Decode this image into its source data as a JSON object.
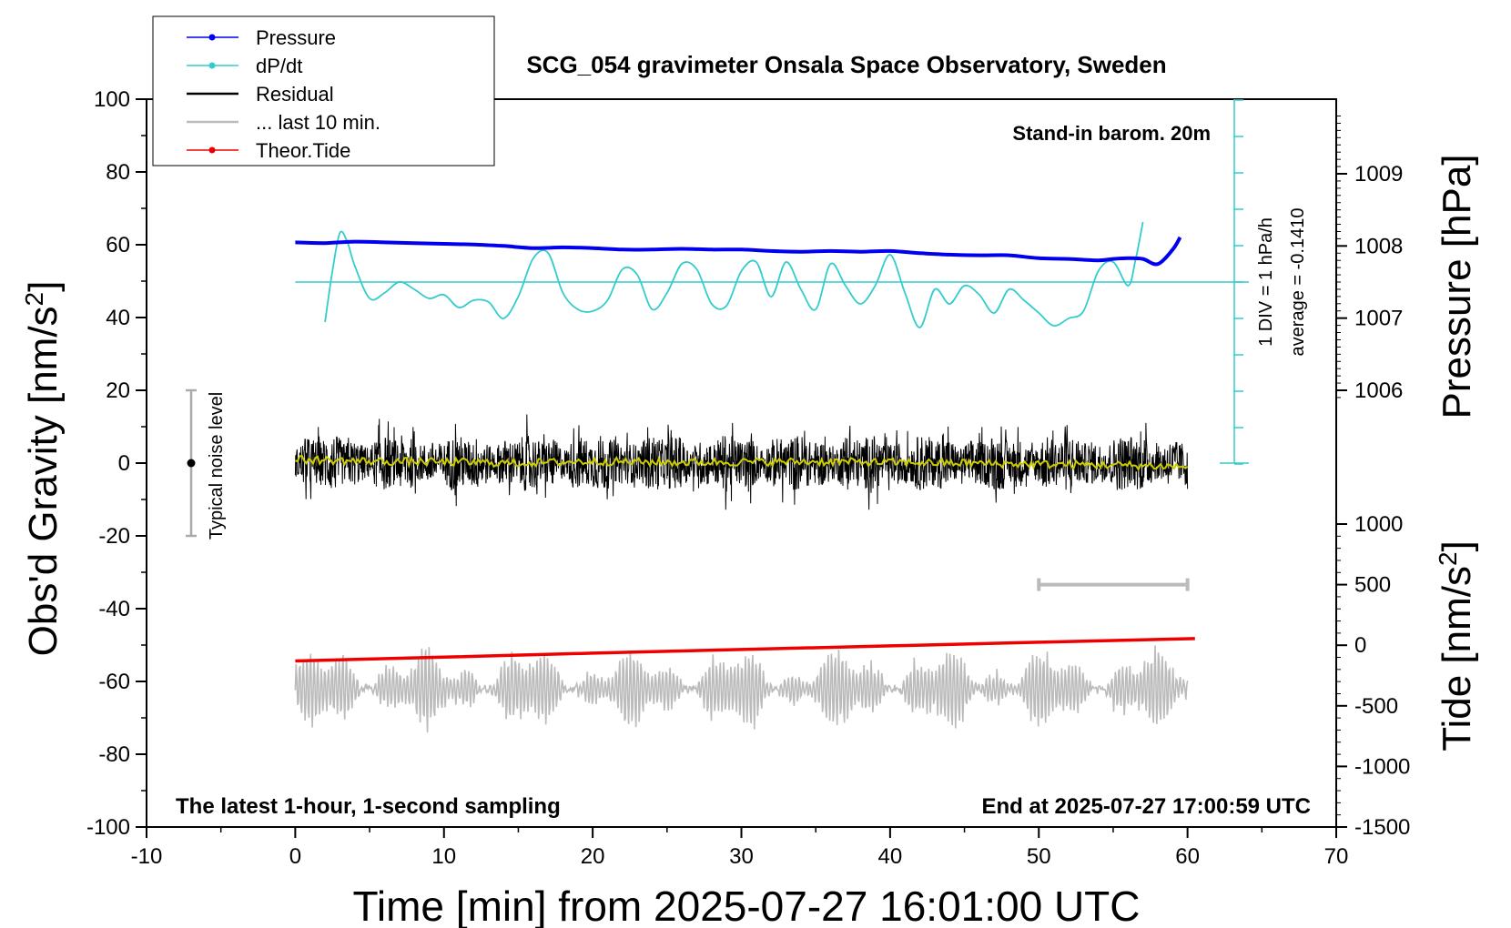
{
  "chart_data": {
    "type": "line",
    "title": "SCG_054 gravimeter Onsala Space Observatory, Sweden",
    "xlabel": "Time [min] from 2025-07-27 16:01:00 UTC",
    "xlim": [
      -10,
      70
    ],
    "xticks": [
      "-10",
      "0",
      "10",
      "20",
      "30",
      "40",
      "50",
      "60",
      "70"
    ],
    "left_axis": {
      "label": "Obs'd Gravity [nm/s",
      "label_sup": "2",
      "label_end": "]",
      "ylim": [
        -100,
        100
      ],
      "ticks": [
        "100",
        "80",
        "60",
        "40",
        "20",
        "0",
        "-20",
        "-40",
        "-60",
        "-80",
        "-100"
      ]
    },
    "right_axis_pressure": {
      "label": "Pressure [hPa]",
      "ticks": [
        "1009",
        "1008",
        "1007",
        "1006"
      ],
      "reference_value_hpa": 1007.5
    },
    "right_axis_tide": {
      "label": "Tide [nm/s",
      "label_sup": "2",
      "label_end": "]",
      "ticks": [
        "1000",
        "500",
        "0",
        "-500",
        "-1000",
        "-1500"
      ]
    },
    "legend": {
      "placement": "top-left",
      "entries": [
        {
          "label": "Pressure",
          "color": "#0000ee",
          "marker": true
        },
        {
          "label": "dP/dt",
          "color": "#33cccc",
          "marker": true
        },
        {
          "label": "Residual",
          "color": "#000000",
          "marker": false
        },
        {
          "label": "... last 10 min.",
          "color": "#bbbbbb",
          "marker": false
        },
        {
          "label": "Theor.Tide",
          "color": "#ee0000",
          "marker": true
        }
      ]
    },
    "annotations": {
      "barometer": "Stand-in barom. 20m",
      "dpdt_scale": "1 DIV = 1 hPa/h",
      "dpdt_average": "average = -0.1410",
      "noise": "Typical noise level",
      "bottom_left": "The latest 1-hour, 1-second sampling",
      "bottom_right": "End at 2025-07-27 17:00:59 UTC"
    },
    "noise_bar": {
      "x": -7,
      "y_center": 0,
      "y_range": [
        -20,
        20
      ]
    },
    "last10_bracket": {
      "x_range": [
        50,
        60
      ],
      "tide_value": 500
    },
    "series": [
      {
        "name": "Pressure",
        "color": "#0000ee",
        "unit": "hPa",
        "x": [
          0,
          2,
          4,
          6,
          8,
          10,
          12,
          14,
          16,
          18,
          20,
          22,
          24,
          26,
          28,
          30,
          32,
          34,
          36,
          38,
          40,
          42,
          44,
          46,
          48,
          50,
          52,
          54,
          55,
          56,
          57,
          58,
          59,
          59.5
        ],
        "values": [
          1008.05,
          1008.04,
          1008.06,
          1008.05,
          1008.04,
          1008.03,
          1008.02,
          1008.0,
          1007.97,
          1007.98,
          1007.97,
          1007.95,
          1007.95,
          1007.96,
          1007.95,
          1007.95,
          1007.93,
          1007.92,
          1007.93,
          1007.92,
          1007.93,
          1007.9,
          1007.88,
          1007.87,
          1007.87,
          1007.83,
          1007.82,
          1007.8,
          1007.82,
          1007.83,
          1007.82,
          1007.75,
          1007.95,
          1008.12
        ]
      },
      {
        "name": "dP/dt",
        "color": "#33cccc",
        "unit": "hPa/h",
        "x": [
          2,
          2.5,
          3,
          3.5,
          4,
          5,
          6,
          7,
          8,
          9,
          10,
          11,
          12,
          13,
          14,
          15,
          16,
          17,
          18,
          19,
          20,
          21,
          22,
          23,
          24,
          25,
          26,
          27,
          28,
          29,
          30,
          31,
          32,
          33,
          34,
          35,
          36,
          37,
          38,
          39,
          40,
          41,
          42,
          43,
          44,
          45,
          46,
          47,
          48,
          49,
          50,
          51,
          52,
          53,
          54,
          55,
          56,
          56.5,
          57
        ],
        "values": [
          -1.1,
          0.3,
          1.35,
          1.1,
          0.45,
          -0.45,
          -0.3,
          0.0,
          -0.2,
          -0.45,
          -0.35,
          -0.7,
          -0.5,
          -0.55,
          -1.0,
          -0.4,
          0.65,
          0.8,
          -0.3,
          -0.75,
          -0.8,
          -0.5,
          0.35,
          0.2,
          -0.75,
          -0.3,
          0.5,
          0.35,
          -0.6,
          -0.65,
          0.3,
          0.55,
          -0.4,
          0.55,
          -0.2,
          -0.75,
          0.5,
          -0.1,
          -0.6,
          -0.1,
          0.75,
          -0.3,
          -1.25,
          -0.2,
          -0.6,
          -0.1,
          -0.35,
          -0.85,
          -0.2,
          -0.5,
          -0.85,
          -1.2,
          -1.0,
          -0.8,
          0.3,
          0.55,
          -0.1,
          0.6,
          1.65
        ]
      },
      {
        "name": "Residual",
        "color": "#000000",
        "unit": "nm/s2",
        "x_range": [
          0,
          60
        ],
        "envelope_amplitude": 10,
        "peak_range": [
          -20,
          17
        ]
      },
      {
        "name": "Residual (smoothed)",
        "color": "#cccc00",
        "unit": "nm/s2",
        "x": [
          0,
          5,
          10,
          15,
          20,
          25,
          30,
          35,
          40,
          45,
          50,
          55,
          60
        ],
        "values": [
          1.0,
          0.5,
          0.3,
          0.0,
          0.5,
          0.2,
          0.3,
          0.4,
          0.2,
          0.0,
          -0.3,
          -0.5,
          -1.0
        ]
      },
      {
        "name": "Theor.Tide",
        "color": "#ee0000",
        "unit": "nm/s2",
        "x": [
          0,
          10,
          20,
          30,
          40,
          50,
          60.5
        ],
        "values": [
          -130,
          -98,
          -65,
          -35,
          -5,
          25,
          55
        ]
      },
      {
        "name": "... last 10 min.",
        "color": "#bbbbbb",
        "unit": "nm/s2",
        "x_range": [
          0,
          60
        ],
        "center_value": -62,
        "amplitude_range": [
          -75,
          -45
        ]
      }
    ]
  }
}
